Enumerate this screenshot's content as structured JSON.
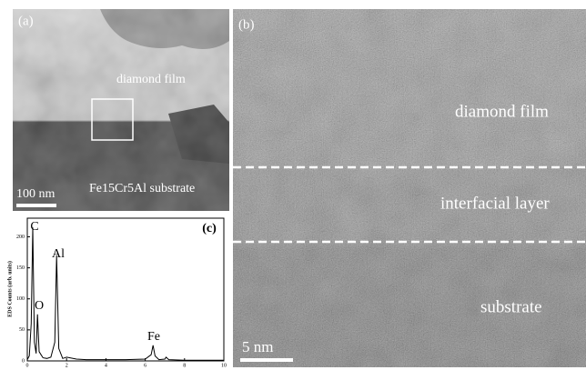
{
  "panel_a": {
    "label": "(a)",
    "film_label": "diamond film",
    "substrate_label": "Fe15Cr5Al substrate",
    "scale_bar": "100 nm"
  },
  "panel_b": {
    "label": "(b)",
    "film_label": "diamond film",
    "interface_label": "interfacial layer",
    "substrate_label": "substrate",
    "scale_bar": "5 nm"
  },
  "chart_data": {
    "type": "line",
    "label": "(c)",
    "y_label": "EDS Counts (arb. units)",
    "x": [
      0,
      0.1,
      0.2,
      0.28,
      0.36,
      0.45,
      0.52,
      0.6,
      0.7,
      0.8,
      1.0,
      1.2,
      1.4,
      1.49,
      1.6,
      1.8,
      2.0,
      2.5,
      3,
      4,
      5,
      6,
      6.3,
      6.4,
      6.5,
      6.7,
      7.0,
      7.06,
      7.2,
      8,
      9,
      10
    ],
    "values": [
      2,
      8,
      60,
      215,
      30,
      12,
      75,
      15,
      10,
      5,
      4,
      6,
      30,
      170,
      20,
      4,
      6,
      3,
      2,
      2,
      2,
      3,
      10,
      25,
      8,
      2,
      3,
      6,
      2,
      1,
      1,
      1
    ],
    "color": "#000000",
    "xlim": [
      0,
      10
    ],
    "ylim": [
      0,
      230
    ],
    "xticks": [
      0,
      2,
      4,
      6,
      8,
      10
    ],
    "yticks": [
      0,
      50,
      100,
      150,
      200
    ],
    "annotations": [
      "C",
      "O",
      "Al",
      "Fe"
    ]
  }
}
